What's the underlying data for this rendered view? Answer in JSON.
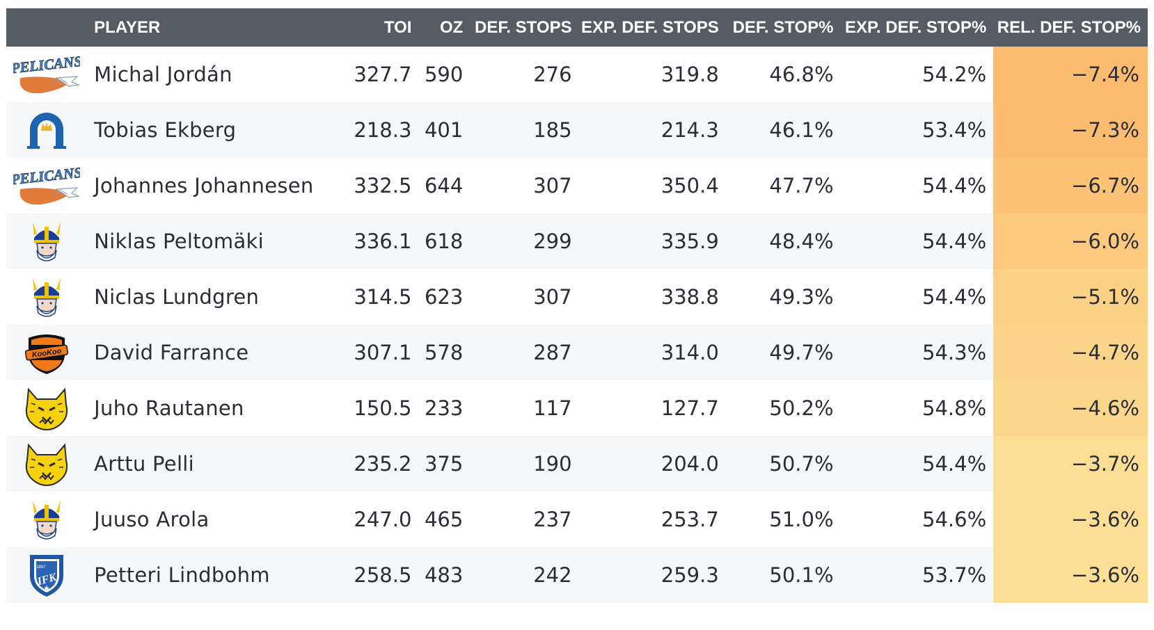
{
  "table": {
    "headers": {
      "player": "PLAYER",
      "toi": "TOI",
      "oz": "OZ",
      "def_stops": "DEF. STOPS",
      "exp_def_stops": "EXP. DEF. STOPS",
      "def_stop_pct": "DEF. STOP%",
      "exp_def_stop_pct": "EXP. DEF. STOP%",
      "rel_def_stop_pct": "REL. DEF. STOP%"
    },
    "rows": [
      {
        "team_logo": "pelicans-logo-icon",
        "player": "Michal Jordán",
        "toi": "327.7",
        "oz": "590",
        "def_stops": "276",
        "exp_def_stops": "319.8",
        "def_stop_pct": "46.8%",
        "exp_def_stop_pct": "54.2%",
        "rel_def_stop_pct": "−7.4%",
        "rel_color": "#fcbb6e"
      },
      {
        "team_logo": "horseshoe-crown-logo-icon",
        "player": "Tobias Ekberg",
        "toi": "218.3",
        "oz": "401",
        "def_stops": "185",
        "exp_def_stops": "214.3",
        "def_stop_pct": "46.1%",
        "exp_def_stop_pct": "53.4%",
        "rel_def_stop_pct": "−7.3%",
        "rel_color": "#fcbc6f"
      },
      {
        "team_logo": "pelicans-logo-icon",
        "player": "Johannes Johannesen",
        "toi": "332.5",
        "oz": "644",
        "def_stops": "307",
        "exp_def_stops": "350.4",
        "def_stop_pct": "47.7%",
        "exp_def_stop_pct": "54.4%",
        "rel_def_stop_pct": "−6.7%",
        "rel_color": "#fcc276"
      },
      {
        "team_logo": "viking-helmet-logo-icon",
        "player": "Niklas Peltomäki",
        "toi": "336.1",
        "oz": "618",
        "def_stops": "299",
        "exp_def_stops": "335.9",
        "def_stop_pct": "48.4%",
        "exp_def_stop_pct": "54.4%",
        "rel_def_stop_pct": "−6.0%",
        "rel_color": "#fcc97e"
      },
      {
        "team_logo": "viking-helmet-logo-icon",
        "player": "Niclas Lundgren",
        "toi": "314.5",
        "oz": "623",
        "def_stops": "307",
        "exp_def_stops": "338.8",
        "def_stop_pct": "49.3%",
        "exp_def_stop_pct": "54.4%",
        "rel_def_stop_pct": "−5.1%",
        "rel_color": "#fcd186"
      },
      {
        "team_logo": "kookoo-shield-logo-icon",
        "player": "David Farrance",
        "toi": "307.1",
        "oz": "578",
        "def_stops": "287",
        "exp_def_stops": "314.0",
        "def_stop_pct": "49.7%",
        "exp_def_stop_pct": "54.3%",
        "rel_def_stop_pct": "−4.7%",
        "rel_color": "#fcd58a"
      },
      {
        "team_logo": "lynx-head-logo-icon",
        "player": "Juho Rautanen",
        "toi": "150.5",
        "oz": "233",
        "def_stops": "117",
        "exp_def_stops": "127.7",
        "def_stop_pct": "50.2%",
        "exp_def_stop_pct": "54.8%",
        "rel_def_stop_pct": "−4.6%",
        "rel_color": "#fcd68b"
      },
      {
        "team_logo": "lynx-head-logo-icon",
        "player": "Arttu Pelli",
        "toi": "235.2",
        "oz": "375",
        "def_stops": "190",
        "exp_def_stops": "204.0",
        "def_stop_pct": "50.7%",
        "exp_def_stop_pct": "54.4%",
        "rel_def_stop_pct": "−3.7%",
        "rel_color": "#fcdd94"
      },
      {
        "team_logo": "viking-helmet-logo-icon",
        "player": "Juuso Arola",
        "toi": "247.0",
        "oz": "465",
        "def_stops": "237",
        "exp_def_stops": "253.7",
        "def_stop_pct": "51.0%",
        "exp_def_stop_pct": "54.6%",
        "rel_def_stop_pct": "−3.6%",
        "rel_color": "#fcde95"
      },
      {
        "team_logo": "ifk-shield-logo-icon",
        "player": "Petteri Lindbohm",
        "toi": "258.5",
        "oz": "483",
        "def_stops": "242",
        "exp_def_stops": "259.3",
        "def_stop_pct": "50.1%",
        "exp_def_stop_pct": "53.7%",
        "rel_def_stop_pct": "−3.6%",
        "rel_color": "#fcde95"
      }
    ]
  },
  "logo_texts": {
    "pelicans": "PELICANS",
    "kookoo": "KooKoo",
    "ifk_year": "1897",
    "ifk_letters": "IFK"
  }
}
